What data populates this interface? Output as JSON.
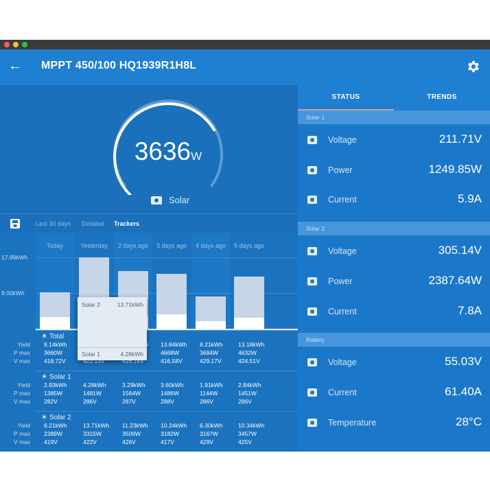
{
  "colors": {
    "window_bg": "#1976c5",
    "appbar": "#1f7fd1",
    "titlebar": "#3b3b3b",
    "dot_red": "#ff5f57",
    "dot_yellow": "#febc2e",
    "dot_green": "#28c840",
    "bar_solar2": "#c6d6e8",
    "bar_solar1": "#ffffff"
  },
  "app": {
    "title": "MPPT 450/100 HQ1939R1H8L",
    "back_icon": "arrow-left-icon",
    "settings_icon": "gear-icon"
  },
  "gauge": {
    "value": "3636",
    "unit": "W",
    "label": "Solar",
    "fraction": 0.72
  },
  "range_tabs": {
    "last30": "Last 30 days",
    "detailed": "Detailed",
    "trackers": "Trackers"
  },
  "chart_data": {
    "type": "bar",
    "categories": [
      "Today",
      "Yesterday",
      "2 days ago",
      "3 days ago",
      "4 days ago",
      "5 days ago"
    ],
    "series": [
      {
        "name": "Solar 1",
        "values": [
          2.93,
          4.28,
          3.29,
          3.6,
          1.91,
          2.84
        ]
      },
      {
        "name": "Solar 2",
        "values": [
          6.21,
          13.71,
          11.23,
          10.24,
          6.3,
          10.34
        ]
      }
    ],
    "yticks": [
      "17.99kWh",
      "9.00kWh"
    ],
    "ytick_values": [
      17.99,
      9.0
    ],
    "ylim": [
      0,
      17.99
    ],
    "stacked": true
  },
  "tooltip": {
    "s2_name": "Solar 2",
    "s2_value": "13.71kWh",
    "s1_name": "Solar 1",
    "s1_value": "4.28kWh"
  },
  "row_labels": [
    "Yield",
    "P max",
    "V max"
  ],
  "sections": [
    {
      "title": "Total",
      "rows": [
        [
          "9.14kWh",
          "17.99kWh",
          "14.52kWh",
          "13.84kWh",
          "8.21kWh",
          "13.18kWh"
        ],
        [
          "3660W",
          "4703W",
          "4473W",
          "4668W",
          "3684W",
          "4632W"
        ],
        [
          "418.72V",
          "422.13V",
          "426.18V",
          "416.58V",
          "429.17V",
          "424.51V"
        ]
      ]
    },
    {
      "title": "Solar 1",
      "rows": [
        [
          "2.93kWh",
          "4.28kWh",
          "3.29kWh",
          "3.60kWh",
          "1.91kWh",
          "2.84kWh"
        ],
        [
          "1385W",
          "1481W",
          "1564W",
          "1486W",
          "1144W",
          "1451W"
        ],
        [
          "282V",
          "286V",
          "287V",
          "288V",
          "286V",
          "286V"
        ]
      ]
    },
    {
      "title": "Solar 2",
      "rows": [
        [
          "6.21kWh",
          "13.71kWh",
          "11.23kWh",
          "10.24kWh",
          "6.30kWh",
          "10.34kWh"
        ],
        [
          "2389W",
          "3315W",
          "3509W",
          "3182W",
          "3167W",
          "3457W"
        ],
        [
          "419V",
          "422V",
          "426V",
          "417V",
          "429V",
          "425V"
        ]
      ]
    }
  ],
  "right_tabs": {
    "status": "STATUS",
    "trends": "TRENDS"
  },
  "groups": [
    {
      "header": "Solar 1",
      "items": [
        {
          "label": "Voltage",
          "value": "211.71V",
          "icon": "solar-panel-icon"
        },
        {
          "label": "Power",
          "value": "1249.85W",
          "icon": "solar-panel-icon"
        },
        {
          "label": "Current",
          "value": "5.9A",
          "icon": "solar-panel-icon"
        }
      ]
    },
    {
      "header": "Solar 2",
      "items": [
        {
          "label": "Voltage",
          "value": "305.14V",
          "icon": "solar-panel-icon"
        },
        {
          "label": "Power",
          "value": "2387.64W",
          "icon": "solar-panel-icon"
        },
        {
          "label": "Current",
          "value": "7.8A",
          "icon": "solar-panel-icon"
        }
      ]
    },
    {
      "header": "Battery",
      "items": [
        {
          "label": "Voltage",
          "value": "55.03V",
          "icon": "battery-icon"
        },
        {
          "label": "Current",
          "value": "61.40A",
          "icon": "battery-icon"
        },
        {
          "label": "Temperature",
          "value": "28°C",
          "icon": "thermometer-icon"
        }
      ]
    }
  ]
}
